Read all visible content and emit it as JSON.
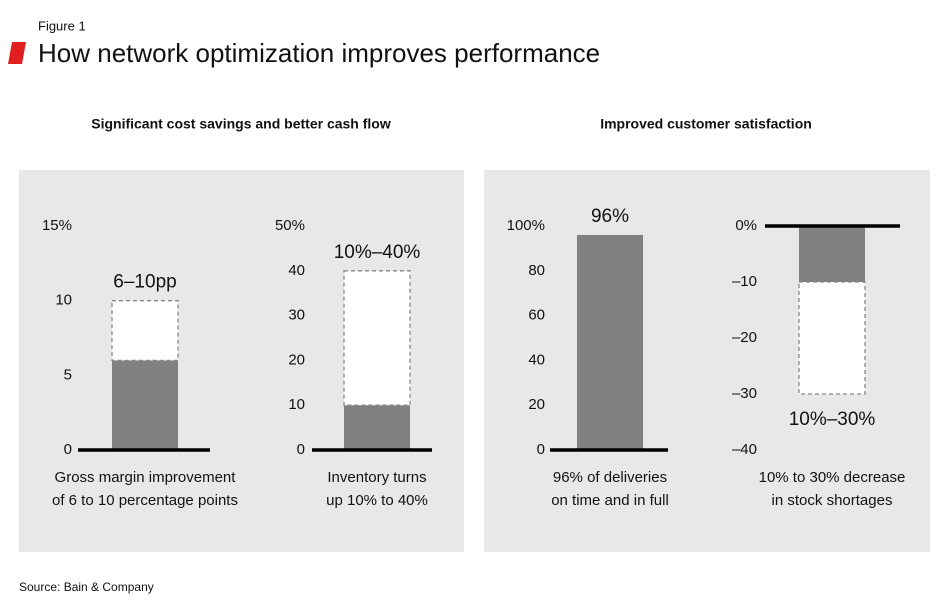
{
  "figure_label": "Figure 1",
  "title": "How network optimization improves performance",
  "panels": [
    {
      "title": "Significant cost savings and better cash flow"
    },
    {
      "title": "Improved customer satisfaction"
    }
  ],
  "chart_data": [
    {
      "type": "range",
      "range": [
        6,
        10
      ],
      "range_label": "6–10pp",
      "color": "#808080",
      "ylim": [
        0,
        15
      ],
      "yticks": [
        0,
        5,
        10,
        {
          "value": 15,
          "label": "15%"
        }
      ],
      "caption": [
        "Gross margin improvement",
        "of 6 to 10 percentage points"
      ]
    },
    {
      "type": "range",
      "range": [
        10,
        40
      ],
      "range_label": "10%–40%",
      "color": "#808080",
      "ylim": [
        0,
        50
      ],
      "yticks": [
        0,
        10,
        20,
        30,
        40,
        {
          "value": 50,
          "label": "50%"
        }
      ],
      "caption": [
        "Inventory turns",
        "up 10% to 40%"
      ]
    },
    {
      "type": "bar",
      "values": [
        96
      ],
      "value_labels": [
        "96%"
      ],
      "color": "#808080",
      "ylim": [
        0,
        100
      ],
      "yticks": [
        0,
        20,
        40,
        60,
        80,
        {
          "value": 100,
          "label": "100%"
        }
      ],
      "caption": [
        "96% of deliveries",
        "on time and in full"
      ]
    },
    {
      "type": "range",
      "range": [
        -10,
        -30
      ],
      "range_label": "10%–30%",
      "color": "#808080",
      "ylim": [
        -40,
        0
      ],
      "yticks": [
        {
          "value": 0,
          "label": "0%"
        },
        {
          "value": -10,
          "label": "–10"
        },
        {
          "value": -20,
          "label": "–20"
        },
        {
          "value": -30,
          "label": "–30"
        },
        {
          "value": -40,
          "label": "–40"
        }
      ],
      "caption": [
        "10% to 30% decrease",
        "in stock shortages"
      ]
    }
  ],
  "source": "Source: Bain & Company"
}
